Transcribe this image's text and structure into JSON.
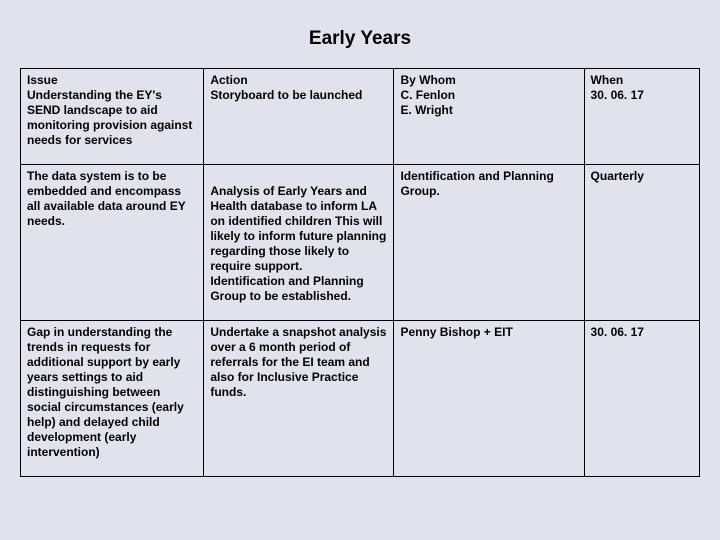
{
  "title": "Early Years",
  "table": {
    "columns": [
      "Issue",
      "Action",
      "By Whom",
      "When"
    ],
    "rows": [
      {
        "issue": "Understanding the EY's SEND landscape to aid monitoring provision against needs for services",
        "action": "Storyboard to be launched",
        "by_whom": "C. Fenlon\nE. Wright",
        "when": "30. 06. 17"
      },
      {
        "issue": "The data system is to be embedded and encompass all available data around EY needs.",
        "action": "Analysis of Early Years and Health database to inform LA on identified children This will likely to inform future planning regarding those likely to require support.\nIdentification and Planning Group to be established.",
        "by_whom": "Identification and Planning Group.",
        "when": "Quarterly"
      },
      {
        "issue": "Gap in understanding the trends in requests for additional support by early years settings to aid distinguishing between social circumstances (early help) and delayed child development (early intervention)",
        "action": "Undertake a snapshot analysis over a 6 month period of referrals for the EI team and also for Inclusive Practice funds.",
        "by_whom": "Penny Bishop + EIT",
        "when": "30. 06. 17"
      }
    ]
  },
  "style": {
    "background_color": "#e2e2ec",
    "border_color": "#000000",
    "title_fontsize": 19,
    "cell_fontsize": 12,
    "font_weight": "bold"
  }
}
